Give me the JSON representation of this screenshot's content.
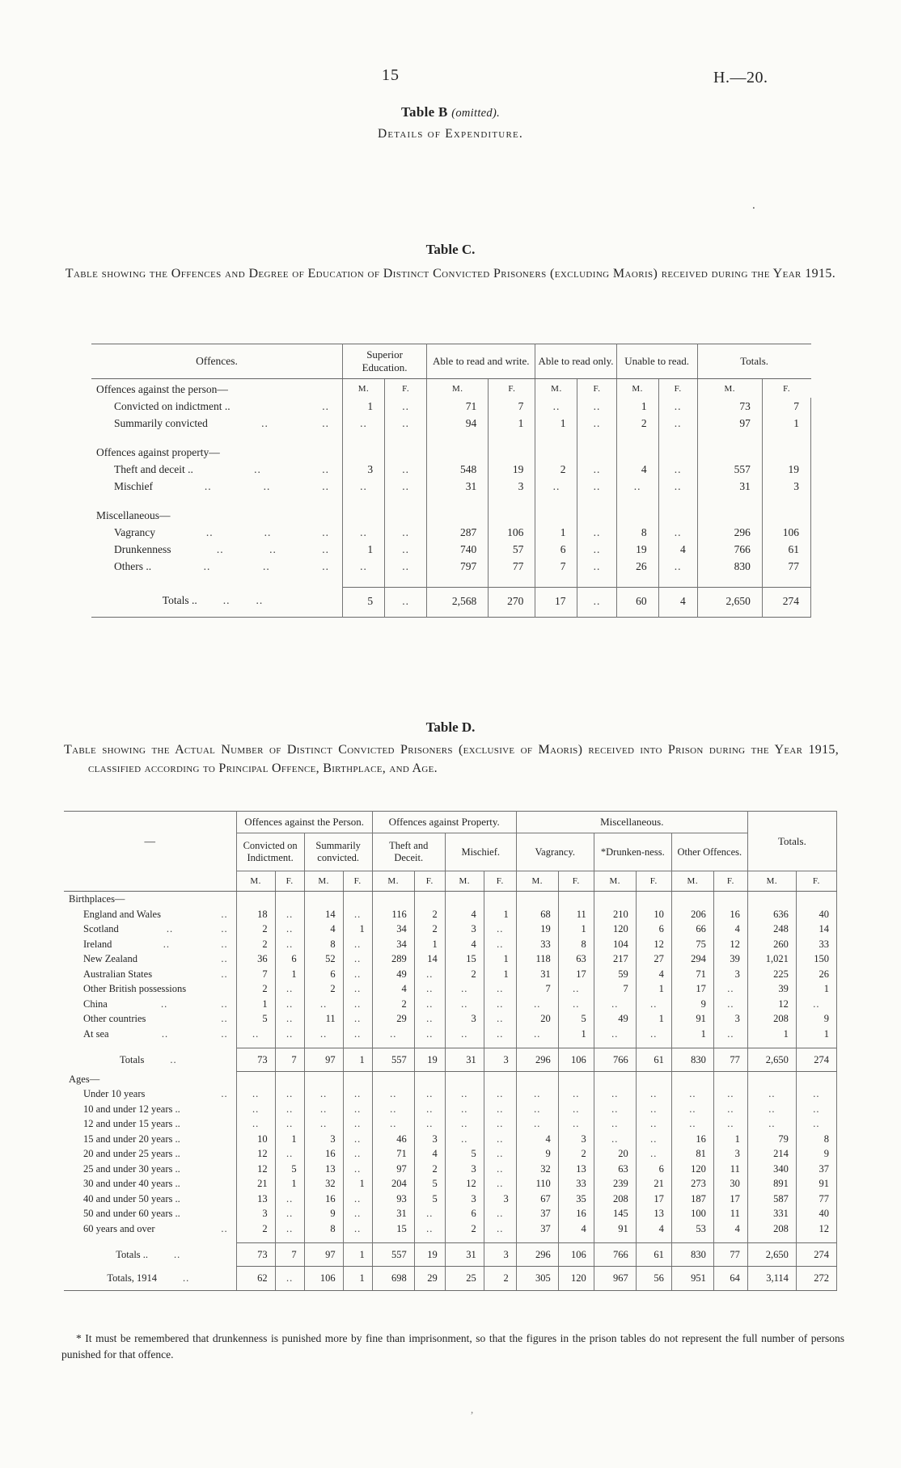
{
  "colors": {
    "paper": "#fbfbf8",
    "ink": "#242424",
    "rule": "#6a6a6a"
  },
  "page": {
    "number": "15",
    "doc_ref": "H.—20."
  },
  "table_b": {
    "title": "Table B",
    "note": "(omitted).",
    "subtitle": "Details of Expenditure."
  },
  "table_c": {
    "title": "Table C.",
    "caption": "Table showing the Offences and Degree of Education of Distinct Convicted Prisoners (excluding Maoris) received during the Year 1915.",
    "stub_header": "Offences.",
    "group_headers": [
      "Superior Education.",
      "Able to read and write.",
      "Able to read only.",
      "Unable to read.",
      "Totals."
    ],
    "mf": [
      "M.",
      "F."
    ],
    "rows": [
      {
        "type": "mfrow",
        "label": "Offences against the person—"
      },
      {
        "type": "item",
        "label": "Convicted on indictment ..",
        "leaders": 1,
        "values": [
          "1",
          "..",
          "71",
          "7",
          "..",
          "..",
          "1",
          "..",
          "73",
          "7"
        ]
      },
      {
        "type": "item",
        "label": "Summarily convicted",
        "leaders": 2,
        "values": [
          "..",
          "..",
          "94",
          "1",
          "1",
          "..",
          "2",
          "..",
          "97",
          "1"
        ]
      },
      {
        "type": "spacer"
      },
      {
        "type": "group",
        "label": "Offences against property—"
      },
      {
        "type": "item",
        "label": "Theft and deceit ..",
        "leaders": 2,
        "values": [
          "3",
          "..",
          "548",
          "19",
          "2",
          "..",
          "4",
          "..",
          "557",
          "19"
        ]
      },
      {
        "type": "item",
        "label": "Mischief",
        "leaders": 3,
        "values": [
          "..",
          "..",
          "31",
          "3",
          "..",
          "..",
          "..",
          "..",
          "31",
          "3"
        ]
      },
      {
        "type": "spacer"
      },
      {
        "type": "group",
        "label": "Miscellaneous—"
      },
      {
        "type": "item",
        "label": "Vagrancy",
        "leaders": 3,
        "values": [
          "..",
          "..",
          "287",
          "106",
          "1",
          "..",
          "8",
          "..",
          "296",
          "106"
        ]
      },
      {
        "type": "item",
        "label": "Drunkenness",
        "leaders": 3,
        "values": [
          "1",
          "..",
          "740",
          "57",
          "6",
          "..",
          "19",
          "4",
          "766",
          "61"
        ]
      },
      {
        "type": "item",
        "label": "Others ..",
        "leaders": 3,
        "values": [
          "..",
          "..",
          "797",
          "77",
          "7",
          "..",
          "26",
          "..",
          "830",
          "77"
        ]
      },
      {
        "type": "spacer"
      },
      {
        "type": "totals",
        "label": "Totals ..",
        "leaders": 2,
        "values": [
          "5",
          "..",
          "2,568",
          "270",
          "17",
          "..",
          "60",
          "4",
          "2,650",
          "274"
        ]
      }
    ]
  },
  "table_d": {
    "title": "Table D.",
    "caption": "Table showing the Actual Number of Distinct Convicted Prisoners (exclusive of Maoris) received into Prison during the Year 1915, classified according to Principal Offence, Birthplace, and Age.",
    "stub_placeholder": "—",
    "group_headers": [
      {
        "label": "Offences against the Person.",
        "span": 4
      },
      {
        "label": "Offences against Property.",
        "span": 4
      },
      {
        "label": "Miscellaneous.",
        "span": 6
      }
    ],
    "totals_header": "Totals.",
    "sub_headers": [
      "Convicted on Indictment.",
      "Summarily convicted.",
      "Theft and Deceit.",
      "Mischief.",
      "Vagrancy.",
      "*Drunken-ness.",
      "Other Offences."
    ],
    "mf": [
      "M.",
      "F."
    ],
    "rows": [
      {
        "type": "group",
        "label": "Birthplaces—"
      },
      {
        "type": "item",
        "label": "England and Wales",
        "leaders": 1,
        "values": [
          "18",
          "..",
          "14",
          "..",
          "116",
          "2",
          "4",
          "1",
          "68",
          "11",
          "210",
          "10",
          "206",
          "16",
          "636",
          "40"
        ]
      },
      {
        "type": "item",
        "label": "Scotland",
        "leaders": 2,
        "values": [
          "2",
          "..",
          "4",
          "1",
          "34",
          "2",
          "3",
          "..",
          "19",
          "1",
          "120",
          "6",
          "66",
          "4",
          "248",
          "14"
        ]
      },
      {
        "type": "item",
        "label": "Ireland",
        "leaders": 2,
        "values": [
          "2",
          "..",
          "8",
          "..",
          "34",
          "1",
          "4",
          "..",
          "33",
          "8",
          "104",
          "12",
          "75",
          "12",
          "260",
          "33"
        ]
      },
      {
        "type": "item",
        "label": "New Zealand",
        "leaders": 1,
        "values": [
          "36",
          "6",
          "52",
          "..",
          "289",
          "14",
          "15",
          "1",
          "118",
          "63",
          "217",
          "27",
          "294",
          "39",
          "1,021",
          "150"
        ]
      },
      {
        "type": "item",
        "label": "Australian States",
        "leaders": 1,
        "values": [
          "7",
          "1",
          "6",
          "..",
          "49",
          "..",
          "2",
          "1",
          "31",
          "17",
          "59",
          "4",
          "71",
          "3",
          "225",
          "26"
        ]
      },
      {
        "type": "item",
        "label": "Other British possessions",
        "leaders": 0,
        "values": [
          "2",
          "..",
          "2",
          "..",
          "4",
          "..",
          "..",
          "..",
          "7",
          "..",
          "7",
          "1",
          "17",
          "..",
          "39",
          "1"
        ]
      },
      {
        "type": "item",
        "label": "China",
        "leaders": 2,
        "values": [
          "1",
          "..",
          "..",
          "..",
          "2",
          "..",
          "..",
          "..",
          "..",
          "..",
          "..",
          "..",
          "9",
          "..",
          "12",
          ".."
        ]
      },
      {
        "type": "item",
        "label": "Other countries",
        "leaders": 1,
        "values": [
          "5",
          "..",
          "11",
          "..",
          "29",
          "..",
          "3",
          "..",
          "20",
          "5",
          "49",
          "1",
          "91",
          "3",
          "208",
          "9"
        ]
      },
      {
        "type": "item",
        "label": "At sea",
        "leaders": 2,
        "values": [
          "..",
          "..",
          "..",
          "..",
          "..",
          "..",
          "..",
          "..",
          "..",
          "1",
          "..",
          "..",
          "1",
          "..",
          "1",
          "1"
        ]
      },
      {
        "type": "spacer"
      },
      {
        "type": "totals",
        "label": "Totals",
        "leaders": 1,
        "values": [
          "73",
          "7",
          "97",
          "1",
          "557",
          "19",
          "31",
          "3",
          "296",
          "106",
          "766",
          "61",
          "830",
          "77",
          "2,650",
          "274"
        ]
      },
      {
        "type": "group",
        "label": "Ages—"
      },
      {
        "type": "item",
        "label": "Under 10 years",
        "leaders": 1,
        "values": [
          "..",
          "..",
          "..",
          "..",
          "..",
          "..",
          "..",
          "..",
          "..",
          "..",
          "..",
          "..",
          "..",
          "..",
          "..",
          ".."
        ]
      },
      {
        "type": "item",
        "label": "10 and under 12 years ..",
        "leaders": 0,
        "values": [
          "..",
          "..",
          "..",
          "..",
          "..",
          "..",
          "..",
          "..",
          "..",
          "..",
          "..",
          "..",
          "..",
          "..",
          "..",
          ".."
        ]
      },
      {
        "type": "item",
        "label": "12 and under 15 years ..",
        "leaders": 0,
        "values": [
          "..",
          "..",
          "..",
          "..",
          "..",
          "..",
          "..",
          "..",
          "..",
          "..",
          "..",
          "..",
          "..",
          "..",
          "..",
          ".."
        ]
      },
      {
        "type": "item",
        "label": "15 and under 20 years ..",
        "leaders": 0,
        "values": [
          "10",
          "1",
          "3",
          "..",
          "46",
          "3",
          "..",
          "..",
          "4",
          "3",
          "..",
          "..",
          "16",
          "1",
          "79",
          "8"
        ]
      },
      {
        "type": "item",
        "label": "20 and under 25 years ..",
        "leaders": 0,
        "values": [
          "12",
          "..",
          "16",
          "..",
          "71",
          "4",
          "5",
          "..",
          "9",
          "2",
          "20",
          "..",
          "81",
          "3",
          "214",
          "9"
        ]
      },
      {
        "type": "item",
        "label": "25 and under 30 years ..",
        "leaders": 0,
        "values": [
          "12",
          "5",
          "13",
          "..",
          "97",
          "2",
          "3",
          "..",
          "32",
          "13",
          "63",
          "6",
          "120",
          "11",
          "340",
          "37"
        ]
      },
      {
        "type": "item",
        "label": "30 and under 40 years ..",
        "leaders": 0,
        "values": [
          "21",
          "1",
          "32",
          "1",
          "204",
          "5",
          "12",
          "..",
          "110",
          "33",
          "239",
          "21",
          "273",
          "30",
          "891",
          "91"
        ]
      },
      {
        "type": "item",
        "label": "40 and under 50 years ..",
        "leaders": 0,
        "values": [
          "13",
          "..",
          "16",
          "..",
          "93",
          "5",
          "3",
          "3",
          "67",
          "35",
          "208",
          "17",
          "187",
          "17",
          "587",
          "77"
        ]
      },
      {
        "type": "item",
        "label": "50 and under 60 years ..",
        "leaders": 0,
        "values": [
          "3",
          "..",
          "9",
          "..",
          "31",
          "..",
          "6",
          "..",
          "37",
          "16",
          "145",
          "13",
          "100",
          "11",
          "331",
          "40"
        ]
      },
      {
        "type": "item",
        "label": "60 years and over",
        "leaders": 1,
        "values": [
          "2",
          "..",
          "8",
          "..",
          "15",
          "..",
          "2",
          "..",
          "37",
          "4",
          "91",
          "4",
          "53",
          "4",
          "208",
          "12"
        ]
      },
      {
        "type": "spacer"
      },
      {
        "type": "totals",
        "label": "Totals ..",
        "leaders": 1,
        "values": [
          "73",
          "7",
          "97",
          "1",
          "557",
          "19",
          "31",
          "3",
          "296",
          "106",
          "766",
          "61",
          "830",
          "77",
          "2,650",
          "274"
        ]
      },
      {
        "type": "totals",
        "label": "Totals, 1914",
        "leaders": 1,
        "values": [
          "62",
          "..",
          "106",
          "1",
          "698",
          "29",
          "25",
          "2",
          "305",
          "120",
          "967",
          "56",
          "951",
          "64",
          "3,114",
          "272"
        ]
      }
    ]
  },
  "footnote": {
    "text": "* It must be remembered that drunkenness is punished more by fine than imprisonment, so that the figures in the prison tables do not represent the full number of persons punished for that offence."
  }
}
